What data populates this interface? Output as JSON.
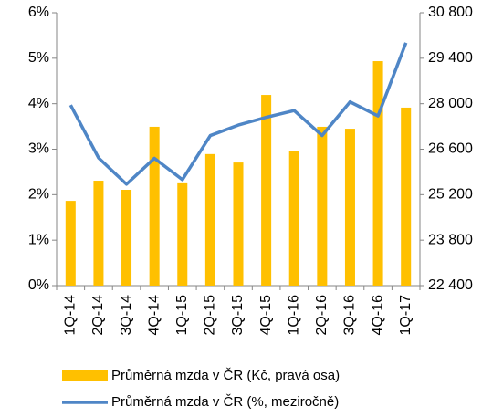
{
  "chart_data": {
    "type": "bar-line",
    "categories": [
      "1Q-14",
      "2Q-14",
      "3Q-14",
      "4Q-14",
      "1Q-15",
      "2Q-15",
      "3Q-15",
      "4Q-15",
      "1Q-16",
      "2Q-16",
      "3Q-16",
      "4Q-16",
      "1Q-17"
    ],
    "series": [
      {
        "name": "Průměrná mzda v ČR (Kč, pravá osa)",
        "color": "#FFC000",
        "type": "bar",
        "axis": "y2",
        "values": [
          25010,
          25630,
          25350,
          27290,
          25550,
          26450,
          26190,
          28270,
          26530,
          27290,
          27230,
          29310,
          27880
        ]
      },
      {
        "name": "Průměrná mzda v ČR (%, meziročně)",
        "color": "#4F86C6",
        "type": "line",
        "axis": "y",
        "values": [
          3.97,
          2.81,
          2.23,
          2.8,
          2.33,
          3.3,
          3.53,
          3.7,
          3.85,
          3.3,
          4.04,
          3.73,
          5.34
        ]
      }
    ],
    "ylim": [
      0,
      6
    ],
    "yticks": [
      {
        "value": 0,
        "label": "0%"
      },
      {
        "value": 1,
        "label": "1%"
      },
      {
        "value": 2,
        "label": "2%"
      },
      {
        "value": 3,
        "label": "3%"
      },
      {
        "value": 4,
        "label": "4%"
      },
      {
        "value": 5,
        "label": "5%"
      },
      {
        "value": 6,
        "label": "6%"
      }
    ],
    "y2lim": [
      22400,
      30800
    ],
    "y2ticks": [
      {
        "value": 22400,
        "label": "22 400"
      },
      {
        "value": 23800,
        "label": "23 800"
      },
      {
        "value": 25200,
        "label": "25 200"
      },
      {
        "value": 26600,
        "label": "26 600"
      },
      {
        "value": 28000,
        "label": "28 000"
      },
      {
        "value": 29400,
        "label": "29 400"
      },
      {
        "value": 30800,
        "label": "30 800"
      }
    ],
    "legend": "bottom"
  }
}
